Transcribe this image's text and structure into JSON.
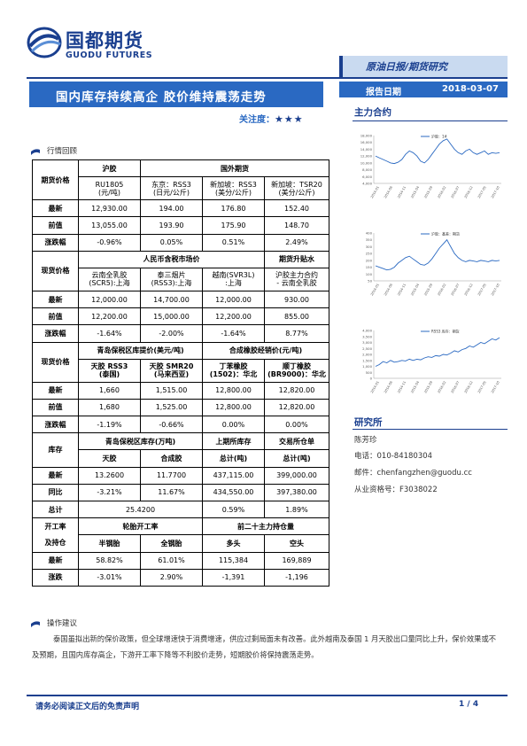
{
  "header": {
    "logo_cn": "国都期货",
    "logo_en": "GUODU FUTURES",
    "category": "原油日报/期货研究",
    "title": "国内库存持续高企 胶价维持震荡走势",
    "attention_label": "关注度：",
    "attention_stars": "★★★",
    "report_date_label": "报告日期",
    "report_date": "2018-03-07"
  },
  "sections": {
    "market_review": "行情回顾",
    "main_contract": "主力合约",
    "research": "研究所",
    "advice": "操作建议"
  },
  "table": {
    "futures": {
      "label": "期货价格",
      "hujiao": "沪胶",
      "foreign": "国外期货",
      "cols": [
        "RU1805\n(元/吨)",
        "东京：RSS3\n(日元/公斤)",
        "新加坡：RSS3\n(美分/公斤)",
        "新加坡：TSR20\n(美分/公斤)"
      ],
      "rows": [
        {
          "name": "最新",
          "values": [
            "12,930.00",
            "194.00",
            "176.80",
            "152.40"
          ]
        },
        {
          "name": "前值",
          "values": [
            "13,055.00",
            "193.90",
            "175.90",
            "148.70"
          ]
        },
        {
          "name": "涨跌幅",
          "values": [
            "-0.96%",
            "0.05%",
            "0.51%",
            "2.49%"
          ]
        }
      ]
    },
    "spot": {
      "label": "现货价格",
      "group1": "人民币含税市场价",
      "group2": "期货升贴水",
      "cols": [
        "云南全乳胶\n(SCR5):上海",
        "泰三烟片\n(RSS3):上海",
        "越南(SVR3L)\n:上海",
        "沪胶主力合约\n- 云南全乳胶"
      ],
      "rows": [
        {
          "name": "最新",
          "values": [
            "12,000.00",
            "14,700.00",
            "12,000.00",
            "930.00"
          ]
        },
        {
          "name": "前值",
          "values": [
            "12,200.00",
            "15,000.00",
            "12,200.00",
            "855.00"
          ]
        },
        {
          "name": "涨跌幅",
          "values": [
            "-1.64%",
            "-2.00%",
            "-1.64%",
            "8.77%"
          ]
        }
      ]
    },
    "spot2": {
      "label": "现货价格",
      "group1": "青岛保税区库提价(美元/吨)",
      "group2": "合成橡胶经销价(元/吨)",
      "cols": [
        "天胶 RSS3\n(泰国)",
        "天胶 SMR20\n(马来西亚)",
        "丁苯橡胶\n(1502)：华北",
        "顺丁橡胶\n(BR9000)：华北"
      ],
      "rows": [
        {
          "name": "最新",
          "values": [
            "1,660",
            "1,515.00",
            "12,800.00",
            "12,820.00"
          ]
        },
        {
          "name": "前值",
          "values": [
            "1,680",
            "1,525.00",
            "12,800.00",
            "12,820.00"
          ]
        },
        {
          "name": "涨跌幅",
          "values": [
            "-1.19%",
            "-0.66%",
            "0.00%",
            "0.00%"
          ]
        }
      ]
    },
    "inventory": {
      "label": "库存",
      "group1": "青岛保税区库存(万吨)",
      "group2": "上期所库存",
      "group3": "交易所仓单",
      "cols": [
        "天胶",
        "合成胶",
        "总计(吨)",
        "总计(吨)"
      ],
      "rows": [
        {
          "name": "最新",
          "values": [
            "13.2600",
            "11.7700",
            "437,115.00",
            "399,000.00"
          ]
        },
        {
          "name": "同比",
          "values": [
            "-3.21%",
            "11.67%",
            "434,550.00",
            "397,380.00"
          ]
        }
      ],
      "total_label": "总计",
      "total_values": [
        "25.4200",
        "0.59%",
        "1.89%"
      ]
    },
    "operation": {
      "label1": "开工率",
      "label2": "及持仓",
      "group1": "轮胎开工率",
      "group2": "前二十主力持仓量",
      "cols": [
        "半钢胎",
        "全钢胎",
        "多头",
        "空头"
      ],
      "rows": [
        {
          "name": "最新",
          "values": [
            "58.82%",
            "61.01%",
            "115,384",
            "169,889"
          ]
        },
        {
          "name": "涨跌",
          "values": [
            "-3.01%",
            "2.90%",
            "-1,391",
            "-1,196"
          ]
        }
      ]
    }
  },
  "charts": [
    {
      "legend": "沪胶：1#",
      "color": "#2a69c2",
      "yticks": [
        "18,000",
        "16,000",
        "14,000",
        "12,000",
        "10,000",
        "8,000",
        "6,000",
        "4,000"
      ],
      "ylim": [
        4000,
        18000
      ],
      "values": [
        12000,
        11500,
        11000,
        10500,
        10000,
        9800,
        10200,
        11000,
        12500,
        13500,
        13000,
        12000,
        10500,
        10000,
        11000,
        12500,
        14000,
        15500,
        16500,
        17000,
        15500,
        14000,
        13000,
        12500,
        13500,
        14000,
        13000,
        12500,
        13000,
        13500,
        12500,
        13000,
        12800,
        13000
      ]
    },
    {
      "legend": "沪胶：基差：期货",
      "color": "#2a69c2",
      "yticks": [
        "400",
        "350",
        "300",
        "250",
        "200",
        "150",
        "100",
        "50"
      ],
      "ylim": [
        50,
        400
      ],
      "values": [
        160,
        150,
        140,
        130,
        135,
        150,
        180,
        200,
        220,
        230,
        210,
        190,
        170,
        165,
        180,
        210,
        250,
        290,
        320,
        350,
        300,
        250,
        220,
        200,
        190,
        200,
        195,
        190,
        200,
        195,
        190,
        200,
        195,
        200
      ]
    },
    {
      "legend": "RSS3 库存：期货",
      "color": "#2a69c2",
      "yticks": [
        "4,000",
        "3,500",
        "3,000",
        "2,500",
        "2,000",
        "1,500",
        "1,000",
        "500",
        "0"
      ],
      "ylim": [
        0,
        4000
      ],
      "values": [
        1000,
        1150,
        1400,
        1300,
        1500,
        1350,
        1400,
        1500,
        1450,
        1600,
        1500,
        1600,
        1550,
        1700,
        1800,
        1750,
        1900,
        1850,
        2000,
        1950,
        2100,
        2300,
        2200,
        2400,
        2500,
        2700,
        2600,
        2800,
        3000,
        2900,
        3100,
        3300,
        3200,
        3400
      ]
    }
  ],
  "chart_xticks": [
    "2014-01",
    "2014-06",
    "2014-11",
    "2015-04",
    "2015-09",
    "2016-02",
    "2016-07",
    "2016-12",
    "2017-05",
    "2017-10"
  ],
  "research": {
    "name": "陈芳珍",
    "phone": "电话：010-84180304",
    "email": "邮件：chenfangzhen@guodu.cc",
    "license": "从业资格号：F3038022"
  },
  "advice_text": "泰国虽拟出新的保价政策，但全球增速快于消费增速，供应过剩局面未有改善。此外越南及泰国 1 月天胶出口量同比上升，保价效果或不及预期，且国内库存高企，下游开工率下降等不利胶价走势，短期胶价将保持震荡走势。",
  "footer": {
    "note": "请务必阅读正文后的免责声明",
    "page": "1 / 4"
  }
}
